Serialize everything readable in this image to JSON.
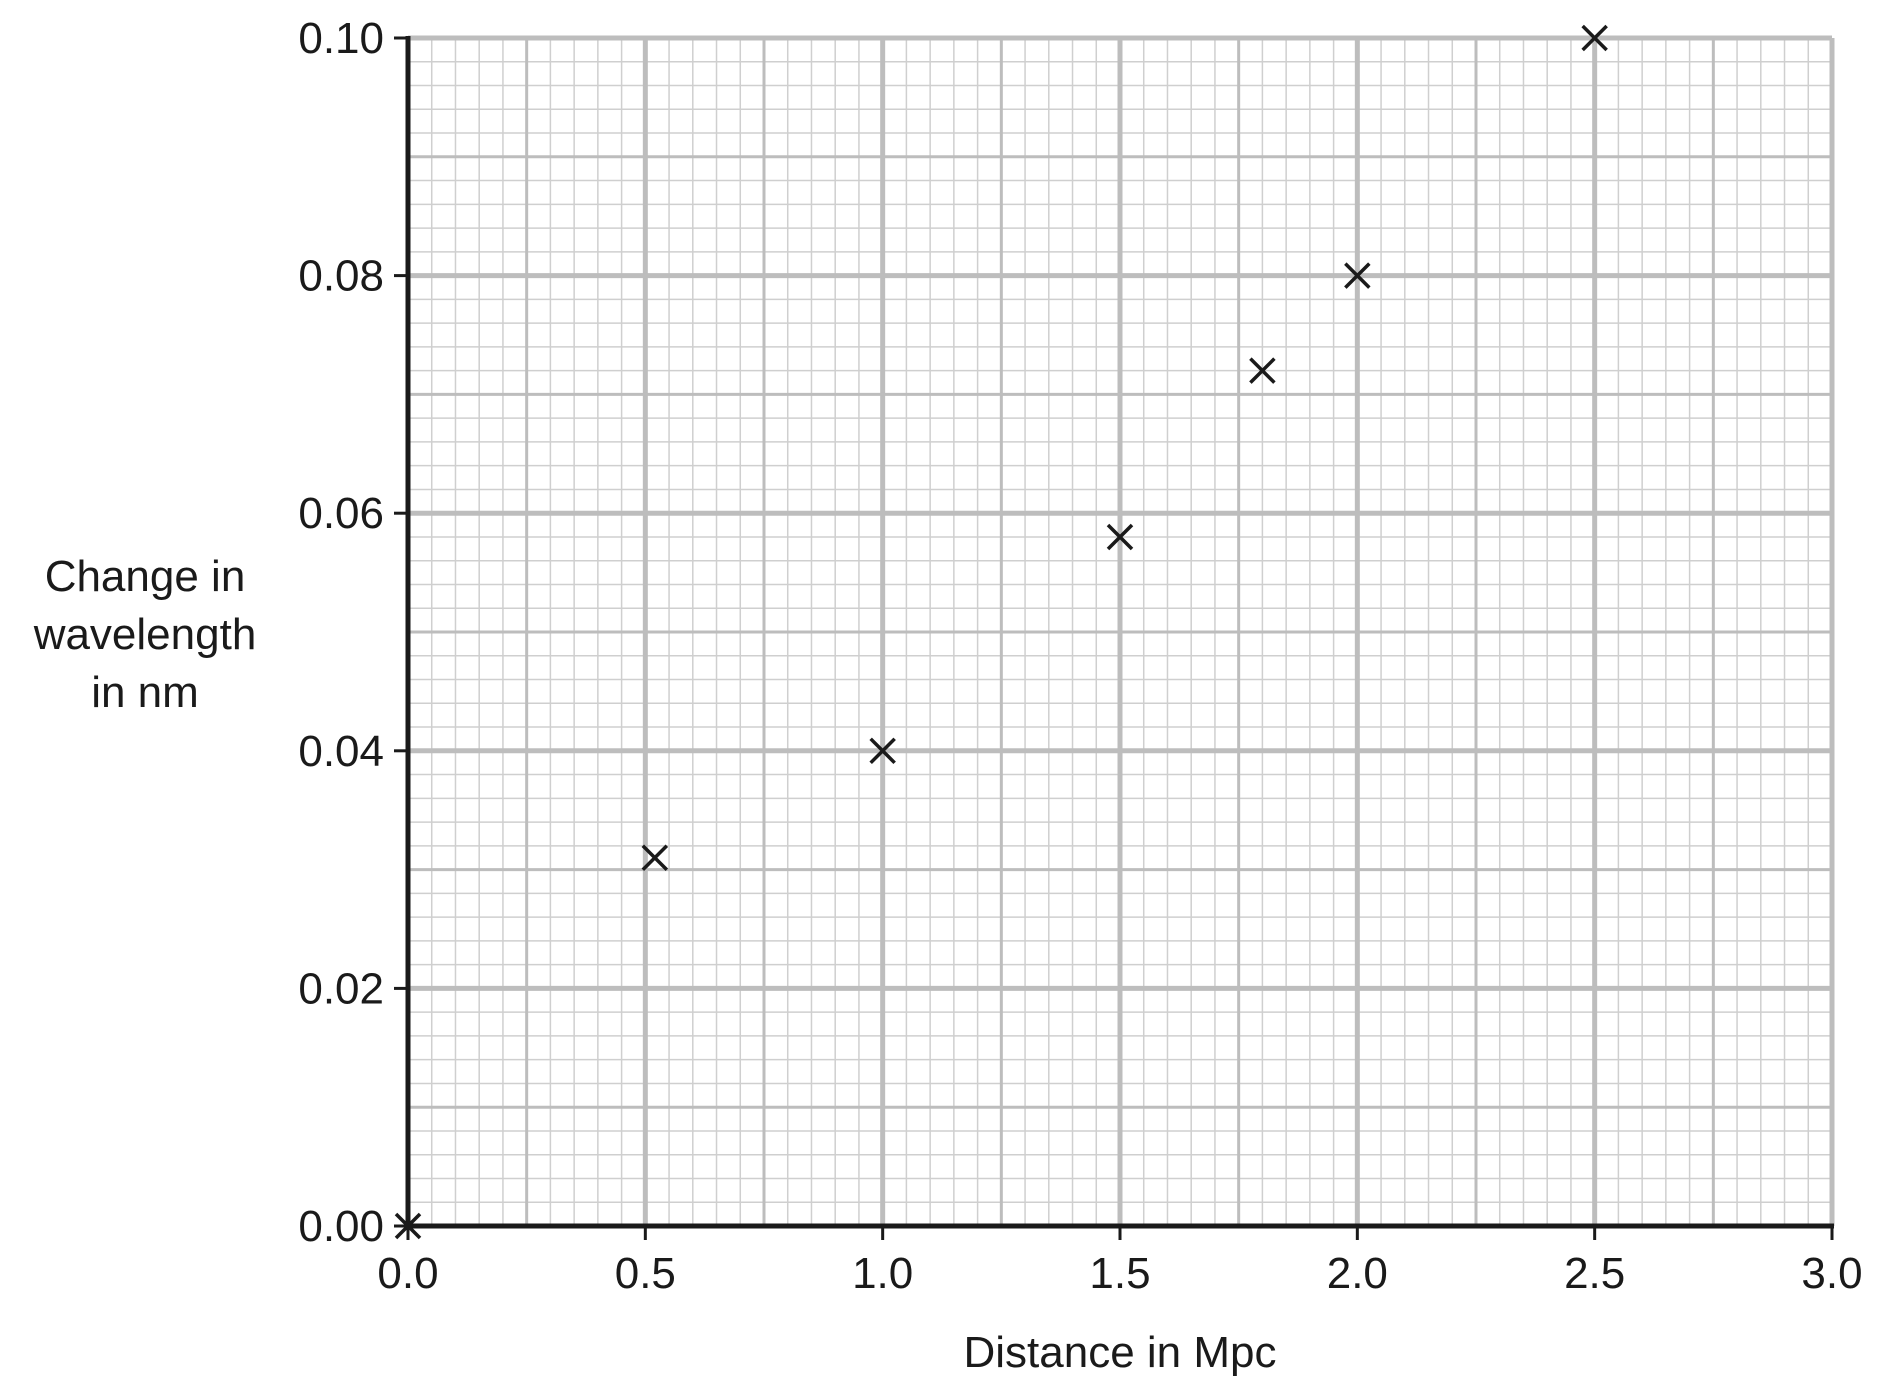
{
  "chart_data": {
    "type": "scatter",
    "title": "",
    "xlabel": "Distance in Mpc",
    "ylabel_lines": [
      "Change in",
      "wavelength",
      "in nm"
    ],
    "xlim": [
      0,
      3.0
    ],
    "ylim": [
      0,
      0.1
    ],
    "x_ticks": [
      "0.0",
      "0.5",
      "1.0",
      "1.5",
      "2.0",
      "2.5",
      "3.0"
    ],
    "y_ticks": [
      "0.00",
      "0.02",
      "0.04",
      "0.06",
      "0.08",
      "0.10"
    ],
    "grid": true,
    "marker": "x",
    "points": [
      {
        "x": 0.0,
        "y": 0.0
      },
      {
        "x": 0.52,
        "y": 0.031
      },
      {
        "x": 1.0,
        "y": 0.04
      },
      {
        "x": 1.5,
        "y": 0.058
      },
      {
        "x": 1.8,
        "y": 0.072
      },
      {
        "x": 2.0,
        "y": 0.08
      },
      {
        "x": 2.5,
        "y": 0.1
      }
    ],
    "colors": {
      "major_grid": "#bdbdbd",
      "minor_grid": "#cfcfcf",
      "axis": "#1a1a1a",
      "marker": "#1a1a1a"
    }
  }
}
